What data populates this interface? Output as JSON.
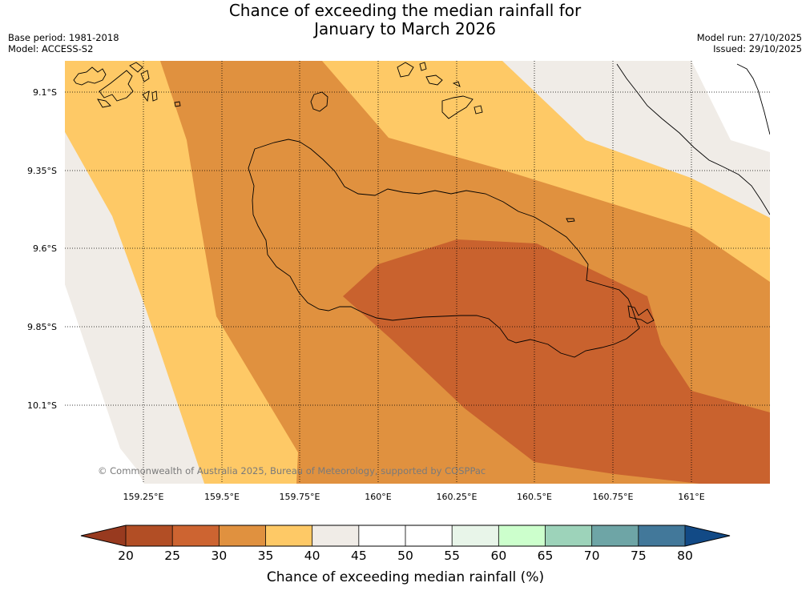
{
  "title": {
    "line1": "Chance of exceeding the median rainfall for",
    "line2": "January to March 2026"
  },
  "meta": {
    "base_period": "Base period: 1981-2018",
    "model": "Model: ACCESS-S2",
    "model_run": "Model run: 27/10/2025",
    "issued": "Issued: 29/10/2025"
  },
  "map": {
    "lon_ticks": [
      "159.25°E",
      "159.5°E",
      "159.75°E",
      "160°E",
      "160.25°E",
      "160.5°E",
      "160.75°E",
      "161°E"
    ],
    "lat_ticks": [
      "9.1°S",
      "9.35°S",
      "9.6°S",
      "9.85°S",
      "10.1°S"
    ],
    "copyright": "© Commonwealth of Australia 2025, Bureau of Meteorology, supported by COSPPac",
    "colors": {
      "band_25_30": "#c9622e",
      "band_30_35": "#e0913f",
      "band_35_40": "#fec966",
      "band_40_45": "#f0ece7",
      "band_45_50": "#ffffff",
      "coastline": "#000000",
      "gridline": "#000000"
    }
  },
  "colorbar": {
    "ticks": [
      "20",
      "25",
      "30",
      "35",
      "40",
      "45",
      "50",
      "55",
      "60",
      "65",
      "70",
      "75",
      "80"
    ],
    "label": "Chance of exceeding median rainfall (%)",
    "under_color": "#983a1f",
    "over_color": "#124a86",
    "colors": [
      "#b24e25",
      "#cd6431",
      "#e0913f",
      "#fec966",
      "#f0ece7",
      "#ffffff",
      "#ffffff",
      "#e8f5e9",
      "#ccffcc",
      "#9dd3ba",
      "#6ea5a6",
      "#42789a"
    ]
  }
}
